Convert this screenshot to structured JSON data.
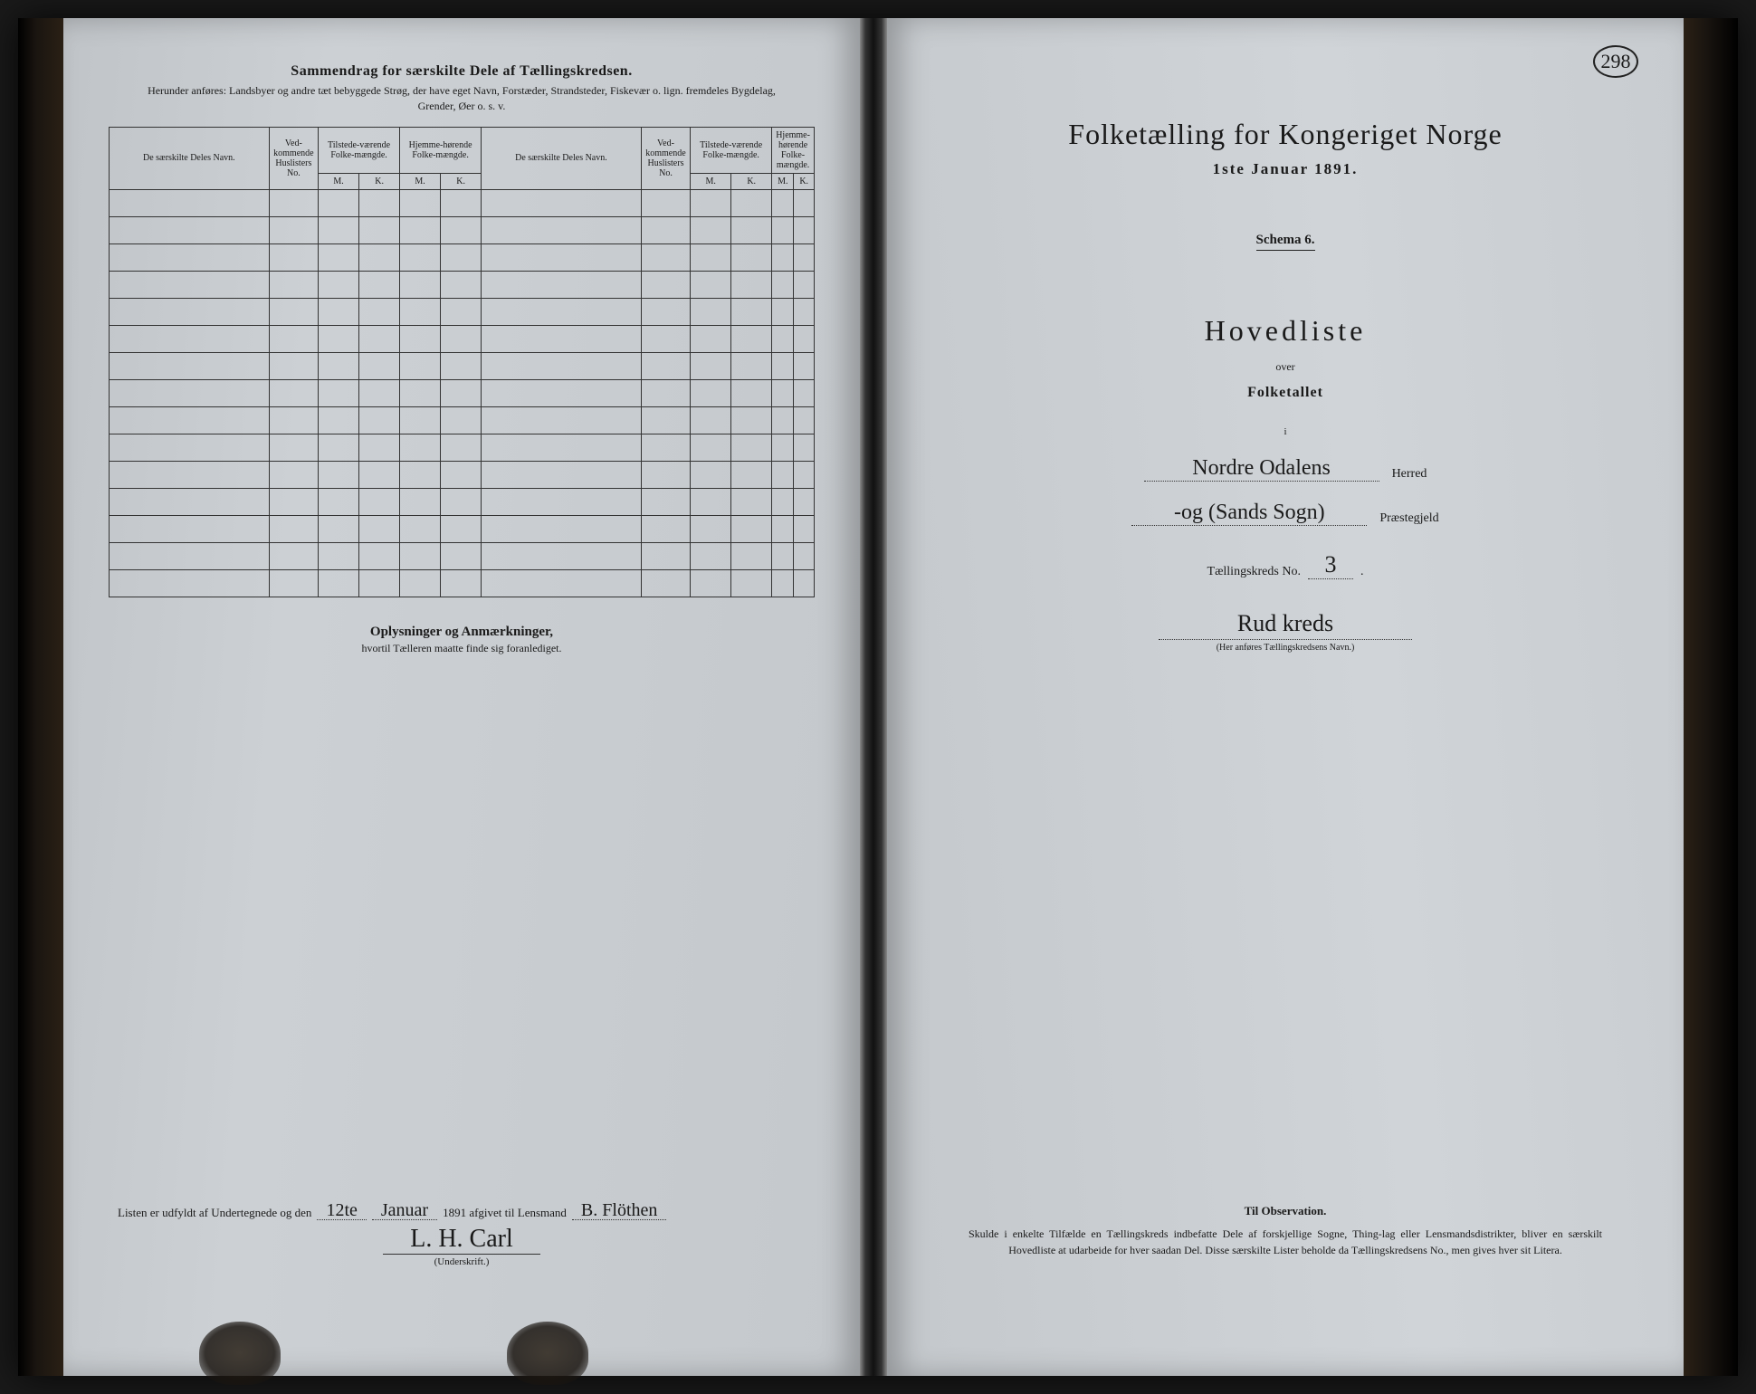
{
  "pageNumber": "298",
  "leftPage": {
    "title": "Sammendrag for særskilte Dele af Tællingskredsen.",
    "subtitle": "Herunder anføres: Landsbyer og andre tæt bebyggede Strøg, der have eget Navn, Forstæder, Strandsteder, Fiskevær o. lign. fremdeles Bygdelag, Grender, Øer o. s. v.",
    "columns": {
      "col1": "De særskilte Deles Navn.",
      "col2": "Ved-kommende Huslisters No.",
      "col3": "Tilstede-værende Folke-mængde.",
      "col4": "Hjemme-hørende Folke-mængde.",
      "col5": "De særskilte Deles Navn.",
      "col6": "Ved-kommende Huslisters No.",
      "col7": "Tilstede-værende Folke-mængde.",
      "col8": "Hjemme-hørende Folke-mængde.",
      "m": "M.",
      "k": "K."
    },
    "oplysTitle": "Oplysninger og Anmærkninger,",
    "oplysSub": "hvortil Tælleren maatte finde sig foranlediget.",
    "signLine": {
      "prefix": "Listen er udfyldt af Undertegnede og den",
      "day": "12te",
      "month": "Januar",
      "yearText": "1891 afgivet til Lensmand",
      "lensmand": "B. Flöthen"
    },
    "signature": "L. H. Carl",
    "sigLabel": "(Underskrift.)"
  },
  "rightPage": {
    "censusTitle": "Folketælling for Kongeriget Norge",
    "censusDate": "1ste Januar 1891.",
    "schema": "Schema 6.",
    "hovedliste": "Hovedliste",
    "over": "over",
    "folketallet": "Folketallet",
    "i": "i",
    "herred": "Nordre Odalens",
    "herredLabel": "Herred",
    "prestegjeld": "-og (Sands Sogn)",
    "prestegjeldLabel": "Præstegjeld",
    "kredsLabel": "Tællingskreds No.",
    "kredsNo": "3",
    "kredsName": "Rud kreds",
    "kredsCaption": "(Her anføres Tællingskredsens Navn.)",
    "obsTitle": "Til Observation.",
    "obsText": "Skulde i enkelte Tilfælde en Tællingskreds indbefatte Dele af forskjellige Sogne, Thing-lag eller Lensmandsdistrikter, bliver en særskilt Hovedliste at udarbeide for hver saadan Del. Disse særskilte Lister beholde da Tællingskredsens No., men gives hver sit Litera."
  }
}
